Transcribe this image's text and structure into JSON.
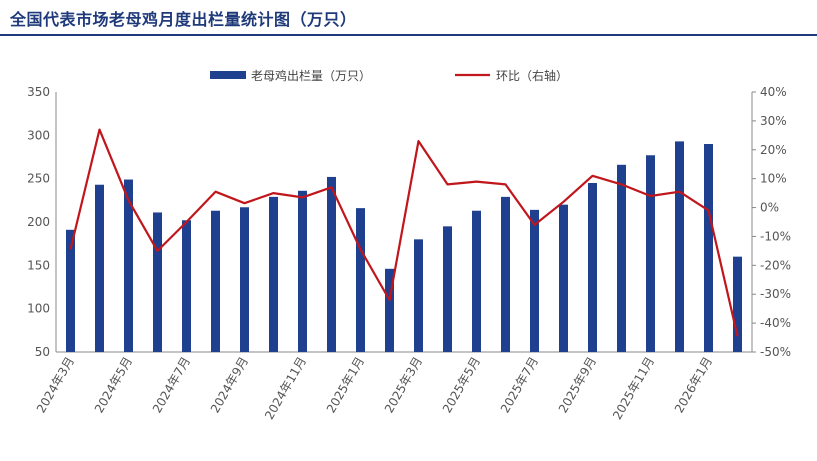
{
  "title": "全国代表市场老母鸡月度出栏量统计图（万只）",
  "colors": {
    "bar": "#1f3f8f",
    "line": "#c0161c",
    "title": "#1f3a7a",
    "axis": "#888888"
  },
  "chart_data": {
    "type": "bar+line",
    "title": "全国代表市场老母鸡月度出栏量统计图（万只）",
    "categories": [
      "2024年3月",
      "2024年4月",
      "2024年5月",
      "2024年6月",
      "2024年7月",
      "2024年8月",
      "2024年9月",
      "2024年10月",
      "2024年11月",
      "2024年12月",
      "2025年1月",
      "2025年2月",
      "2025年3月",
      "2025年4月",
      "2025年5月",
      "2025年6月",
      "2025年7月",
      "2025年8月",
      "2025年9月",
      "2025年10月",
      "2025年11月",
      "2025年12月",
      "2026年1月",
      "2026年2月"
    ],
    "x_tick_labels": [
      "2024年3月",
      "2024年5月",
      "2024年7月",
      "2024年9月",
      "2024年11月",
      "2025年1月",
      "2025年3月",
      "2025年5月",
      "2025年7月",
      "2025年9月",
      "2025年11月",
      "2026年1月"
    ],
    "legend_position": "top",
    "series": [
      {
        "name": "老母鸡出栏量（万只）",
        "type": "bar",
        "axis": "left",
        "values": [
          191,
          243,
          249,
          211,
          202,
          213,
          217,
          229,
          236,
          252,
          216,
          146,
          180,
          195,
          213,
          229,
          214,
          220,
          245,
          266,
          277,
          293,
          290,
          160
        ]
      },
      {
        "name": "环比（右轴）",
        "type": "line",
        "axis": "right",
        "values": [
          -14.5,
          27,
          2.5,
          -15,
          -5,
          5.5,
          1.5,
          5,
          3.5,
          7,
          -14.5,
          -32,
          23,
          8,
          9,
          8,
          -6,
          2,
          11,
          8,
          4,
          5.5,
          -1,
          -44.5
        ]
      }
    ],
    "y_left": {
      "min": 50,
      "max": 350,
      "ticks": [
        50,
        100,
        150,
        200,
        250,
        300,
        350
      ]
    },
    "y_right": {
      "min": -50,
      "max": 40,
      "ticks": [
        "40%",
        "30%",
        "20%",
        "10%",
        "0%",
        "-10%",
        "-20%",
        "-30%",
        "-40%",
        "-50%"
      ]
    },
    "grid": false
  }
}
